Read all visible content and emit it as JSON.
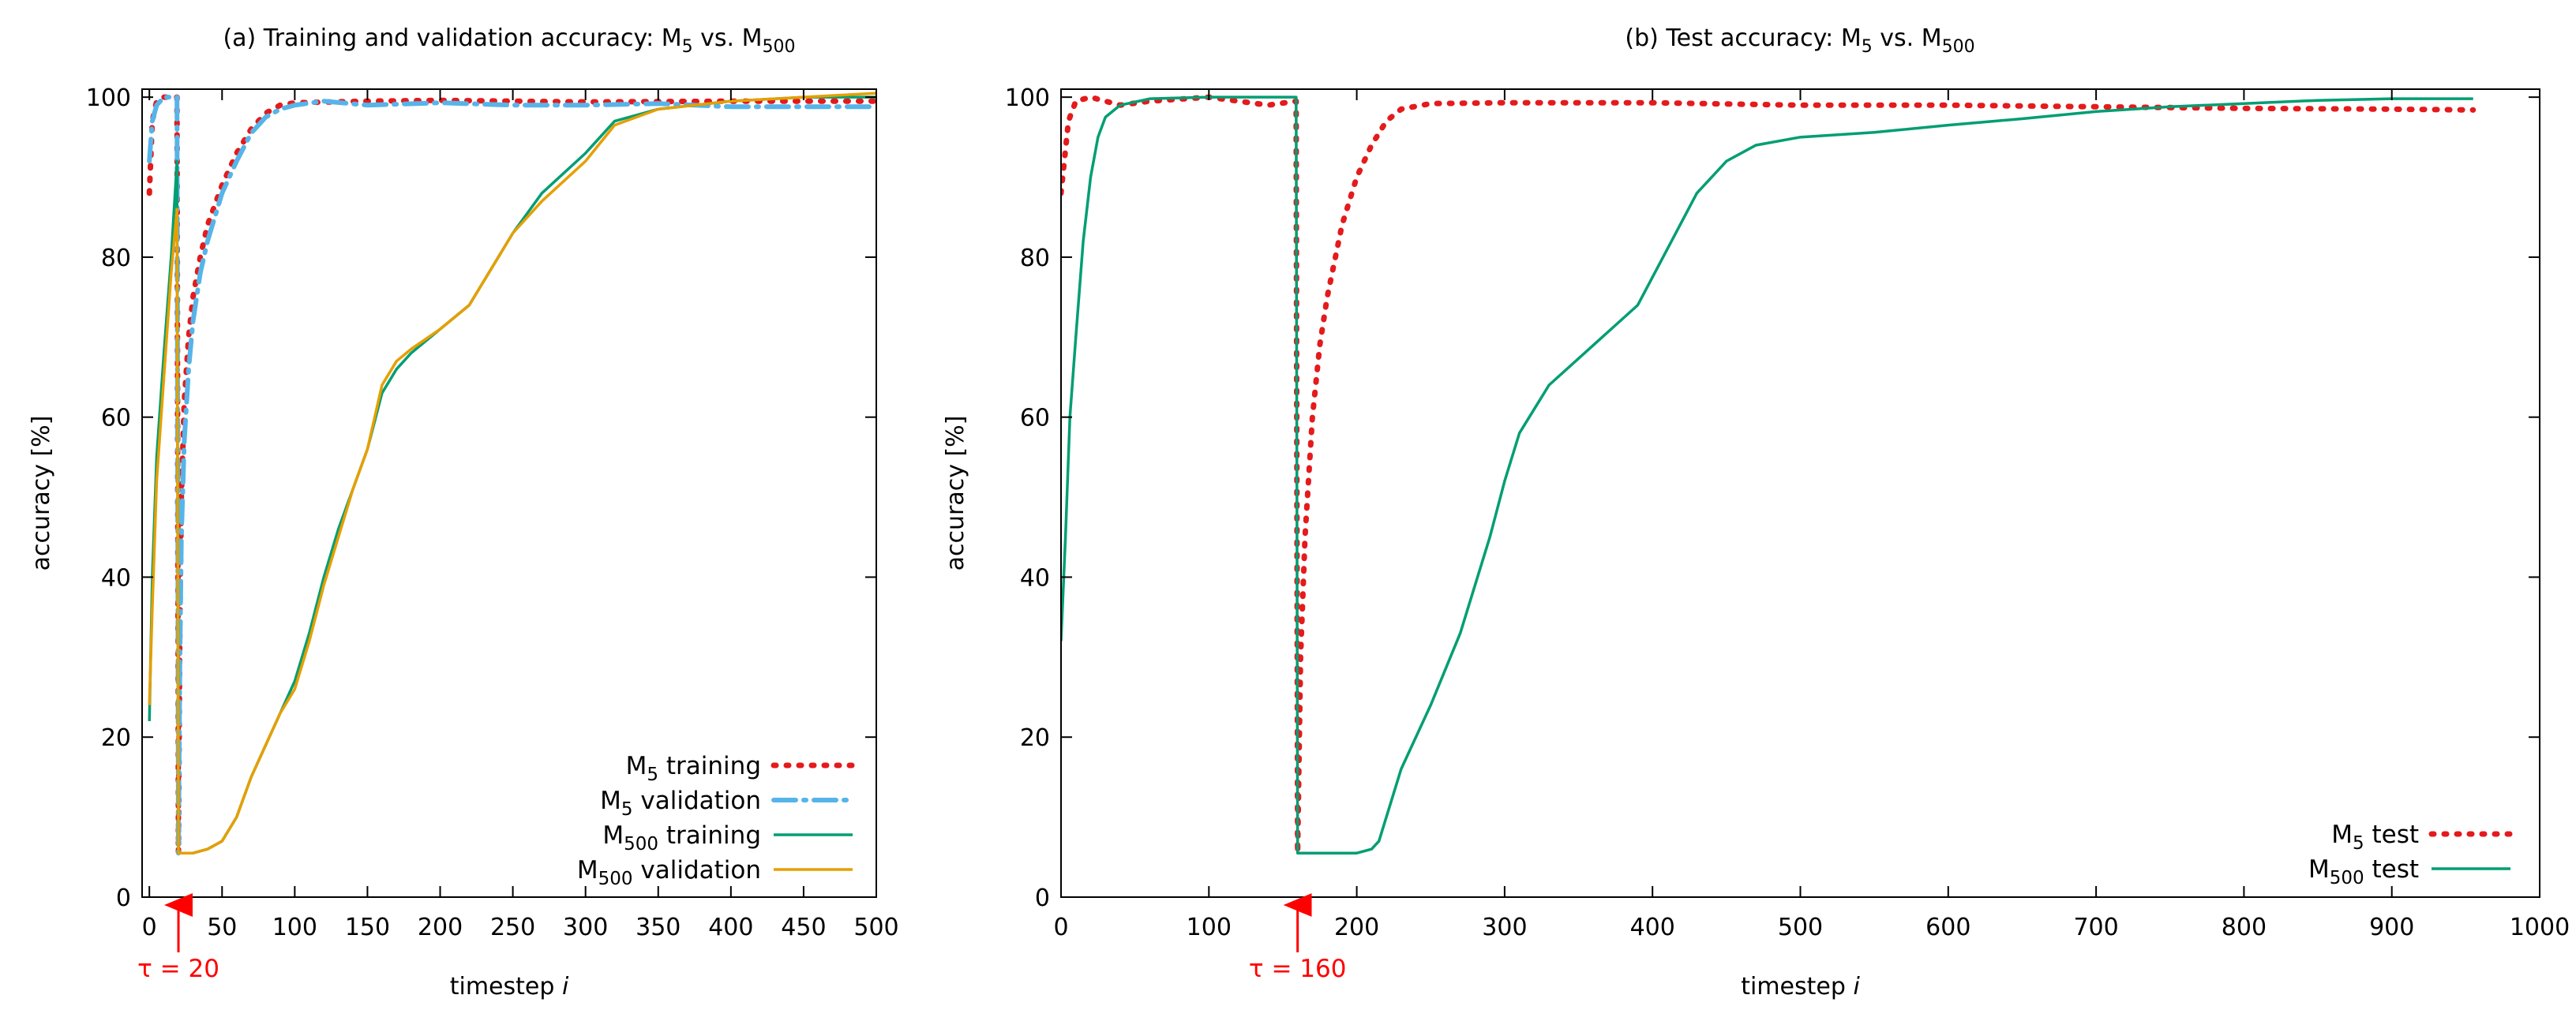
{
  "chart_data": [
    {
      "type": "line",
      "title": "(a) Training and validation accuracy: M5 vs. M500",
      "title_parts": {
        "prefix": "(a) Training and validation accuracy: M",
        "sub1": "5",
        "mid": " vs. M",
        "sub2": "500"
      },
      "xlabel": "timestep i",
      "xlabel_parts": {
        "text": "timestep ",
        "italic": "i"
      },
      "ylabel": "accuracy [%]",
      "xlim": [
        -5,
        500
      ],
      "ylim": [
        0,
        101
      ],
      "xticks": [
        0,
        50,
        100,
        150,
        200,
        250,
        300,
        350,
        400,
        450,
        500
      ],
      "yticks": [
        0,
        20,
        40,
        60,
        80,
        100
      ],
      "annotation": {
        "text": "τ = 20",
        "x": 20
      },
      "legend_position": "bottom-right",
      "series": [
        {
          "name": "M5 training",
          "label_main": "M",
          "label_sub": "5",
          "label_rest": " training",
          "color": "#e41a1c",
          "style": "dotted",
          "points": [
            [
              0,
              88
            ],
            [
              2,
              97
            ],
            [
              5,
              99.5
            ],
            [
              10,
              100
            ],
            [
              15,
              100
            ],
            [
              19,
              100
            ],
            [
              20,
              5.5
            ],
            [
              21,
              35
            ],
            [
              22,
              50
            ],
            [
              24,
              62
            ],
            [
              27,
              70
            ],
            [
              30,
              75
            ],
            [
              35,
              80
            ],
            [
              40,
              84
            ],
            [
              50,
              89
            ],
            [
              60,
              93
            ],
            [
              70,
              96
            ],
            [
              80,
              98
            ],
            [
              90,
              99
            ],
            [
              100,
              99.3
            ],
            [
              150,
              99.5
            ],
            [
              200,
              99.6
            ],
            [
              300,
              99.4
            ],
            [
              400,
              99.5
            ],
            [
              500,
              99.5
            ]
          ]
        },
        {
          "name": "M5 validation",
          "label_main": "M",
          "label_sub": "5",
          "label_rest": " validation",
          "color": "#56b4e9",
          "style": "dashdot",
          "points": [
            [
              0,
              92
            ],
            [
              2,
              97
            ],
            [
              5,
              99
            ],
            [
              10,
              100
            ],
            [
              15,
              100
            ],
            [
              19,
              100
            ],
            [
              20,
              5.5
            ],
            [
              21,
              30
            ],
            [
              22,
              45
            ],
            [
              24,
              57
            ],
            [
              27,
              66
            ],
            [
              30,
              72
            ],
            [
              35,
              78
            ],
            [
              40,
              82
            ],
            [
              50,
              88
            ],
            [
              60,
              92
            ],
            [
              70,
              95.5
            ],
            [
              80,
              97.5
            ],
            [
              90,
              98.5
            ],
            [
              100,
              99
            ],
            [
              120,
              99.5
            ],
            [
              150,
              99
            ],
            [
              200,
              99.3
            ],
            [
              250,
              99
            ],
            [
              300,
              99
            ],
            [
              350,
              99.2
            ],
            [
              400,
              98.8
            ],
            [
              450,
              98.8
            ],
            [
              500,
              98.8
            ]
          ]
        },
        {
          "name": "M500 training",
          "label_main": "M",
          "label_sub": "500",
          "label_rest": " training",
          "color": "#009e73",
          "style": "solid",
          "points": [
            [
              0,
              22
            ],
            [
              2,
              40
            ],
            [
              5,
              55
            ],
            [
              10,
              68
            ],
            [
              15,
              80
            ],
            [
              19,
              92
            ],
            [
              20,
              5.5
            ],
            [
              30,
              5.5
            ],
            [
              40,
              6
            ],
            [
              50,
              7
            ],
            [
              60,
              10
            ],
            [
              70,
              15
            ],
            [
              80,
              19
            ],
            [
              90,
              23
            ],
            [
              100,
              27
            ],
            [
              110,
              33
            ],
            [
              120,
              40
            ],
            [
              130,
              46
            ],
            [
              140,
              51
            ],
            [
              150,
              56
            ],
            [
              160,
              63
            ],
            [
              170,
              66
            ],
            [
              180,
              68
            ],
            [
              200,
              71
            ],
            [
              220,
              74
            ],
            [
              250,
              83
            ],
            [
              270,
              88
            ],
            [
              300,
              93
            ],
            [
              320,
              97
            ],
            [
              350,
              98.5
            ],
            [
              400,
              99.5
            ],
            [
              450,
              100
            ],
            [
              500,
              100
            ]
          ]
        },
        {
          "name": "M500 validation",
          "label_main": "M",
          "label_sub": "500",
          "label_rest": " validation",
          "color": "#e69f00",
          "style": "solid",
          "points": [
            [
              0,
              24
            ],
            [
              2,
              36
            ],
            [
              5,
              52
            ],
            [
              10,
              65
            ],
            [
              15,
              78
            ],
            [
              19,
              86
            ],
            [
              20,
              5.5
            ],
            [
              30,
              5.5
            ],
            [
              40,
              6
            ],
            [
              50,
              7
            ],
            [
              60,
              10
            ],
            [
              70,
              15
            ],
            [
              80,
              19
            ],
            [
              90,
              23
            ],
            [
              100,
              26
            ],
            [
              110,
              32
            ],
            [
              120,
              39
            ],
            [
              130,
              45
            ],
            [
              140,
              51
            ],
            [
              150,
              56
            ],
            [
              160,
              64
            ],
            [
              170,
              67
            ],
            [
              180,
              68.5
            ],
            [
              200,
              71
            ],
            [
              220,
              74
            ],
            [
              250,
              83
            ],
            [
              270,
              87
            ],
            [
              300,
              92
            ],
            [
              320,
              96.5
            ],
            [
              350,
              98.5
            ],
            [
              400,
              99.5
            ],
            [
              450,
              100
            ],
            [
              500,
              100.5
            ]
          ]
        }
      ]
    },
    {
      "type": "line",
      "title": "(b) Test accuracy: M5 vs. M500",
      "title_parts": {
        "prefix": "(b) Test accuracy: M",
        "sub1": "5",
        "mid": " vs. M",
        "sub2": "500"
      },
      "xlabel": "timestep i",
      "xlabel_parts": {
        "text": "timestep ",
        "italic": "i"
      },
      "ylabel": "accuracy [%]",
      "xlim": [
        0,
        1000
      ],
      "ylim": [
        0,
        101
      ],
      "xticks": [
        0,
        100,
        200,
        300,
        400,
        500,
        600,
        700,
        800,
        900,
        1000
      ],
      "yticks": [
        0,
        20,
        40,
        60,
        80,
        100
      ],
      "annotation": {
        "text": "τ = 160",
        "x": 160
      },
      "legend_position": "bottom-right",
      "series": [
        {
          "name": "M5 test",
          "label_main": "M",
          "label_sub": "5",
          "label_rest": " test",
          "color": "#e41a1c",
          "style": "dotted",
          "points": [
            [
              0,
              88
            ],
            [
              5,
              97
            ],
            [
              10,
              99.5
            ],
            [
              20,
              100
            ],
            [
              40,
              99
            ],
            [
              60,
              99.5
            ],
            [
              100,
              100
            ],
            [
              140,
              99
            ],
            [
              159,
              99.5
            ],
            [
              160,
              5.5
            ],
            [
              162,
              30
            ],
            [
              165,
              45
            ],
            [
              170,
              60
            ],
            [
              175,
              69
            ],
            [
              180,
              75
            ],
            [
              190,
              84
            ],
            [
              200,
              90
            ],
            [
              210,
              94
            ],
            [
              220,
              97
            ],
            [
              230,
              98.5
            ],
            [
              250,
              99.2
            ],
            [
              300,
              99.3
            ],
            [
              400,
              99.3
            ],
            [
              500,
              99
            ],
            [
              600,
              99
            ],
            [
              700,
              98.8
            ],
            [
              800,
              98.6
            ],
            [
              900,
              98.5
            ],
            [
              955,
              98.4
            ]
          ]
        },
        {
          "name": "M500 test",
          "label_main": "M",
          "label_sub": "500",
          "label_rest": " test",
          "color": "#009e73",
          "style": "solid",
          "points": [
            [
              0,
              32
            ],
            [
              3,
              45
            ],
            [
              6,
              60
            ],
            [
              10,
              70
            ],
            [
              15,
              82
            ],
            [
              20,
              90
            ],
            [
              25,
              95
            ],
            [
              30,
              97.5
            ],
            [
              40,
              99
            ],
            [
              60,
              99.8
            ],
            [
              100,
              100
            ],
            [
              159,
              100
            ],
            [
              160,
              5.5
            ],
            [
              200,
              5.5
            ],
            [
              210,
              6
            ],
            [
              215,
              7
            ],
            [
              220,
              10
            ],
            [
              230,
              16
            ],
            [
              250,
              24
            ],
            [
              270,
              33
            ],
            [
              290,
              45
            ],
            [
              300,
              52
            ],
            [
              310,
              58
            ],
            [
              330,
              64
            ],
            [
              360,
              69
            ],
            [
              390,
              74
            ],
            [
              410,
              81
            ],
            [
              430,
              88
            ],
            [
              450,
              92
            ],
            [
              470,
              94
            ],
            [
              500,
              95
            ],
            [
              550,
              95.6
            ],
            [
              600,
              96.5
            ],
            [
              650,
              97.3
            ],
            [
              700,
              98.2
            ],
            [
              750,
              98.8
            ],
            [
              800,
              99.2
            ],
            [
              850,
              99.6
            ],
            [
              900,
              99.8
            ],
            [
              955,
              99.8
            ]
          ]
        }
      ]
    }
  ]
}
